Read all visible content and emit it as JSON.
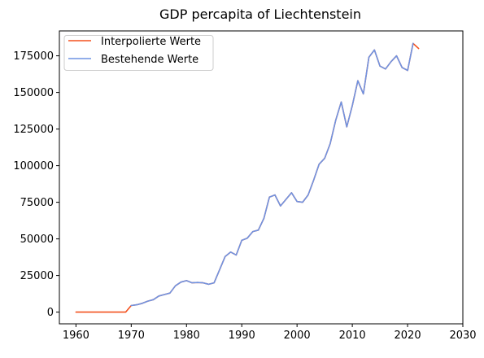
{
  "chart_data": {
    "type": "line",
    "title": "GDP percapita of Liechtenstein",
    "xlabel": "",
    "ylabel": "",
    "xlim": [
      1957,
      2030
    ],
    "ylim": [
      -8000,
      192000
    ],
    "xticks": [
      1960,
      1970,
      1980,
      1990,
      2000,
      2010,
      2020,
      2030
    ],
    "xtick_labels": [
      "1960",
      "1970",
      "1980",
      "1990",
      "2000",
      "2010",
      "2020",
      "2030"
    ],
    "yticks": [
      0,
      25000,
      50000,
      75000,
      100000,
      125000,
      150000,
      175000
    ],
    "ytick_labels": [
      "0",
      "25000",
      "50000",
      "75000",
      "100000",
      "125000",
      "150000",
      "175000"
    ],
    "grid": false,
    "legend_position": "top-left",
    "series": [
      {
        "name": "Interpolierte Werte",
        "color": "#f4511e",
        "x": [
          1960,
          1961,
          1962,
          1963,
          1964,
          1965,
          1966,
          1967,
          1968,
          1969,
          1970,
          1971,
          1972,
          1973,
          1974,
          1975,
          1976,
          1977,
          1978,
          1979,
          1980,
          1981,
          1982,
          1983,
          1984,
          1985,
          1986,
          1987,
          1988,
          1989,
          1990,
          1991,
          1992,
          1993,
          1994,
          1995,
          1996,
          1997,
          1998,
          1999,
          2000,
          2001,
          2002,
          2003,
          2004,
          2005,
          2006,
          2007,
          2008,
          2009,
          2010,
          2011,
          2012,
          2013,
          2014,
          2015,
          2016,
          2017,
          2018,
          2019,
          2020,
          2021,
          2022
        ],
        "y": [
          0,
          0,
          0,
          0,
          0,
          0,
          0,
          0,
          0,
          0,
          4500,
          5000,
          6000,
          7500,
          8500,
          11000,
          12000,
          13000,
          18000,
          20500,
          21500,
          20000,
          20200,
          20000,
          19000,
          20000,
          29000,
          38000,
          41000,
          39000,
          49000,
          50500,
          55000,
          56000,
          64000,
          78500,
          80000,
          72500,
          77000,
          81500,
          75500,
          75000,
          80000,
          90000,
          101000,
          105000,
          115000,
          131000,
          143500,
          126500,
          141000,
          158000,
          149000,
          174000,
          179000,
          168000,
          166000,
          171000,
          175000,
          167000,
          165000,
          183500,
          180000
        ]
      },
      {
        "name": "Bestehende Werte",
        "color": "#6f94e3",
        "x": [
          1970,
          1971,
          1972,
          1973,
          1974,
          1975,
          1976,
          1977,
          1978,
          1979,
          1980,
          1981,
          1982,
          1983,
          1984,
          1985,
          1986,
          1987,
          1988,
          1989,
          1990,
          1991,
          1992,
          1993,
          1994,
          1995,
          1996,
          1997,
          1998,
          1999,
          2000,
          2001,
          2002,
          2003,
          2004,
          2005,
          2006,
          2007,
          2008,
          2009,
          2010,
          2011,
          2012,
          2013,
          2014,
          2015,
          2016,
          2017,
          2018,
          2019,
          2020,
          2021
        ],
        "y": [
          4500,
          5000,
          6000,
          7500,
          8500,
          11000,
          12000,
          13000,
          18000,
          20500,
          21500,
          20000,
          20200,
          20000,
          19000,
          20000,
          29000,
          38000,
          41000,
          39000,
          49000,
          50500,
          55000,
          56000,
          64000,
          78500,
          80000,
          72500,
          77000,
          81500,
          75500,
          75000,
          80000,
          90000,
          101000,
          105000,
          115000,
          131000,
          143500,
          126500,
          141000,
          158000,
          149000,
          174000,
          179000,
          168000,
          166000,
          171000,
          175000,
          167000,
          165000,
          183500
        ]
      }
    ]
  }
}
